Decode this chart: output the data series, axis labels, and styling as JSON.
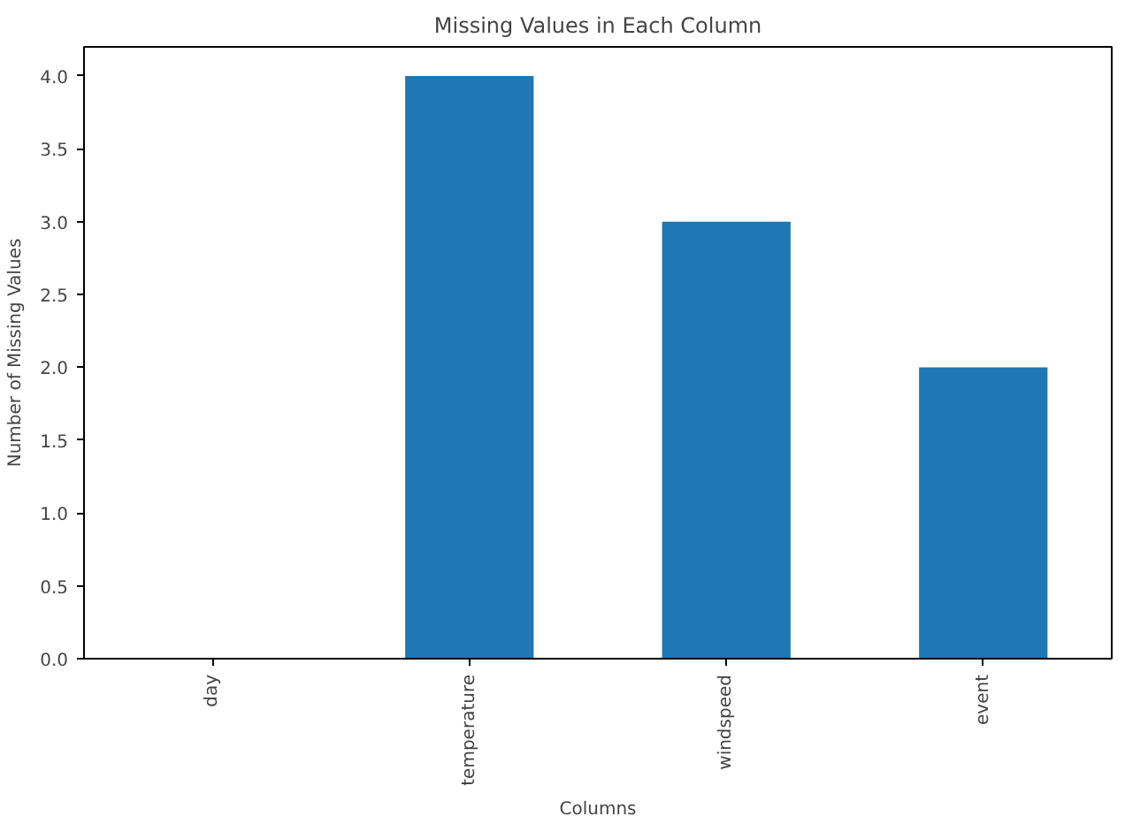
{
  "chart_data": {
    "type": "bar",
    "title": "Missing Values in Each Column",
    "xlabel": "Columns",
    "ylabel": "Number of Missing Values",
    "categories": [
      "day",
      "temperature",
      "windspeed",
      "event"
    ],
    "values": [
      0,
      4,
      3,
      2
    ],
    "color": "#1f77b4",
    "ylim": [
      0,
      4.2
    ],
    "yticks": [
      {
        "value": 0,
        "label": "0.0"
      },
      {
        "value": 0.5,
        "label": "0.5"
      },
      {
        "value": 1,
        "label": "1.0"
      },
      {
        "value": 1.5,
        "label": "1.5"
      },
      {
        "value": 2,
        "label": "2.0"
      },
      {
        "value": 2.5,
        "label": "2.5"
      },
      {
        "value": 3,
        "label": "3.0"
      },
      {
        "value": 3.5,
        "label": "3.5"
      },
      {
        "value": 4,
        "label": "4.0"
      }
    ],
    "grid": false
  }
}
